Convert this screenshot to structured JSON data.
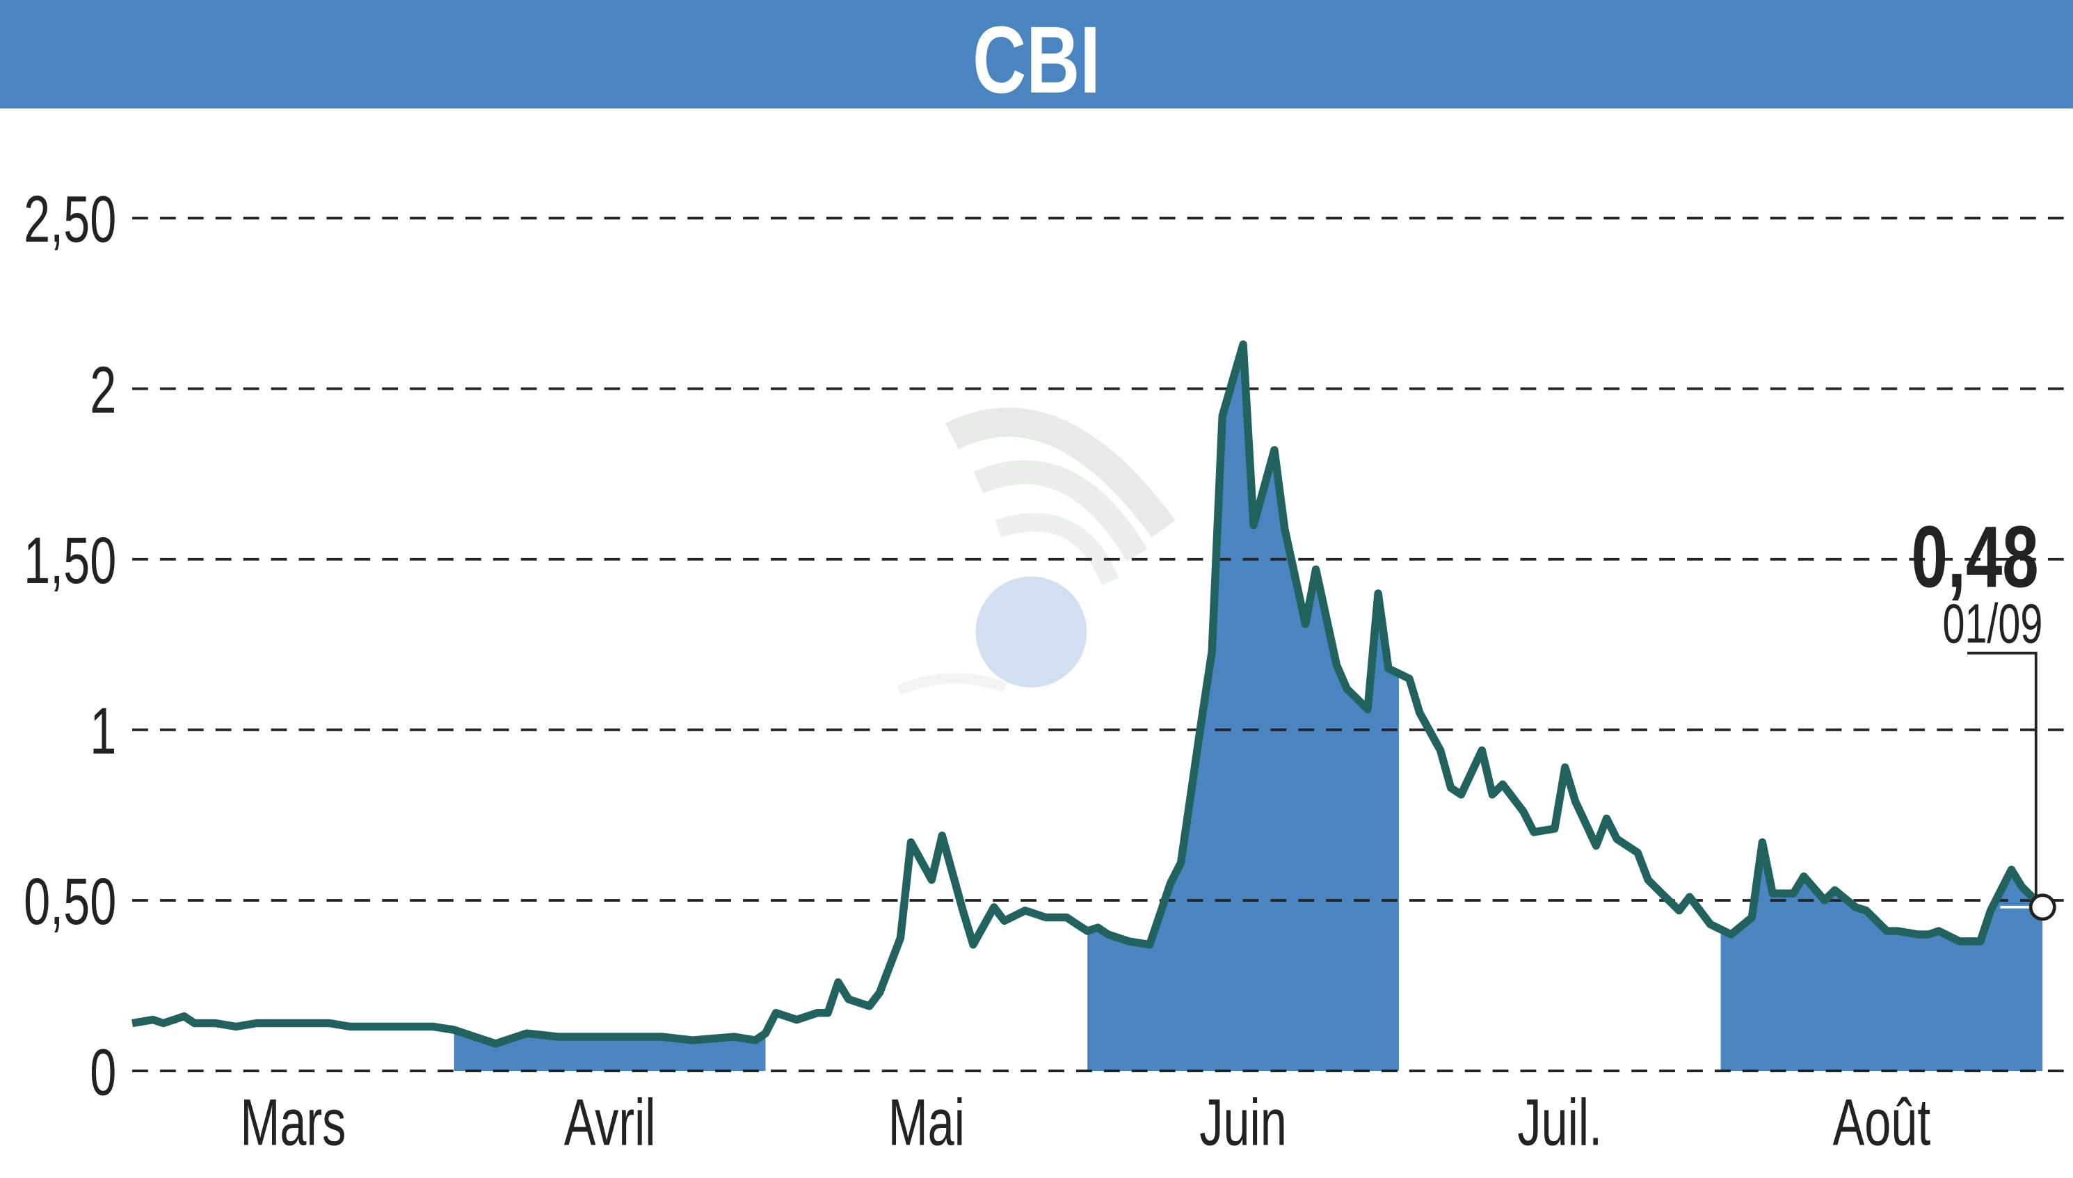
{
  "header": {
    "title": "CBI",
    "color": "#4a85c1"
  },
  "chart_data": {
    "type": "line",
    "title": "CBI",
    "xlabel": "",
    "ylabel": "",
    "ylim": [
      0,
      2.5
    ],
    "yticks": [
      0,
      0.5,
      1,
      1.5,
      2,
      2.5
    ],
    "ytick_labels": [
      "0",
      "0,50",
      "1",
      "1,50",
      "2",
      "2,50"
    ],
    "grid": true,
    "months": [
      {
        "label": "Mars",
        "start": "01/03",
        "shaded": false
      },
      {
        "label": "Avril",
        "start": "01/04",
        "shaded": true
      },
      {
        "label": "Mai",
        "start": "01/05",
        "shaded": false
      },
      {
        "label": "Juin",
        "start": "01/06",
        "shaded": true
      },
      {
        "label": "Juil.",
        "start": "01/07",
        "shaded": false
      },
      {
        "label": "Août",
        "start": "01/08",
        "shaded": true
      }
    ],
    "end_date": "01/09",
    "line_color": "#22625e",
    "fill_color": "#4a85c1",
    "last_value": {
      "label": "0,48",
      "date": "01/09",
      "value": 0.48
    },
    "series": [
      {
        "x": [
          "01/03",
          "03/03",
          "04/03",
          "06/03",
          "07/03",
          "09/03",
          "11/03",
          "13/03",
          "15/03",
          "18/03",
          "20/03",
          "22/03",
          "25/03",
          "28/03",
          "30/03",
          "01/04",
          "04/04",
          "05/04",
          "08/04",
          "11/04",
          "14/04",
          "17/04",
          "19/04",
          "21/04",
          "24/04",
          "28/04",
          "30/04",
          "01/05",
          "02/05",
          "04/05",
          "06/05",
          "07/05",
          "08/05",
          "09/05",
          "11/05",
          "12/05",
          "14/05",
          "15/05",
          "17/05",
          "18/05",
          "20/05",
          "21/05",
          "23/05",
          "24/05",
          "26/05",
          "28/05",
          "30/05",
          "31/05",
          "01/06",
          "02/06",
          "03/06",
          "05/06",
          "07/06",
          "09/06",
          "10/06",
          "12/06",
          "13/06",
          "14/06",
          "16/06",
          "17/06",
          "19/06",
          "20/06",
          "22/06",
          "23/06",
          "25/06",
          "26/06",
          "28/06",
          "29/06",
          "30/06",
          "02/07",
          "03/07",
          "05/07",
          "06/07",
          "07/07",
          "09/07",
          "10/07",
          "11/07",
          "13/07",
          "14/07",
          "16/07",
          "17/07",
          "18/07",
          "20/07",
          "21/07",
          "22/07",
          "24/07",
          "25/07",
          "26/07",
          "28/07",
          "29/07",
          "30/07",
          "31/07",
          "02/08",
          "04/08",
          "05/08",
          "06/08",
          "08/08",
          "09/08",
          "11/08",
          "12/08",
          "14/08",
          "15/08",
          "17/08",
          "18/08",
          "20/08",
          "21/08",
          "22/08",
          "24/08",
          "26/08",
          "27/08",
          "29/08",
          "30/08",
          "01/09"
        ],
        "values": [
          0.14,
          0.15,
          0.14,
          0.16,
          0.14,
          0.14,
          0.13,
          0.14,
          0.14,
          0.14,
          0.14,
          0.13,
          0.13,
          0.13,
          0.13,
          0.12,
          0.09,
          0.08,
          0.11,
          0.1,
          0.1,
          0.1,
          0.1,
          0.1,
          0.09,
          0.1,
          0.09,
          0.11,
          0.17,
          0.15,
          0.17,
          0.17,
          0.26,
          0.21,
          0.19,
          0.23,
          0.39,
          0.67,
          0.56,
          0.69,
          0.47,
          0.37,
          0.48,
          0.44,
          0.47,
          0.45,
          0.45,
          0.43,
          0.41,
          0.42,
          0.4,
          0.38,
          0.37,
          0.55,
          0.61,
          1.03,
          1.23,
          1.92,
          2.13,
          1.6,
          1.82,
          1.59,
          1.31,
          1.47,
          1.19,
          1.12,
          1.06,
          1.4,
          1.18,
          1.15,
          1.05,
          0.94,
          0.83,
          0.81,
          0.94,
          0.81,
          0.84,
          0.76,
          0.7,
          0.71,
          0.89,
          0.79,
          0.66,
          0.74,
          0.68,
          0.64,
          0.56,
          0.53,
          0.47,
          0.51,
          0.47,
          0.43,
          0.4,
          0.45,
          0.67,
          0.52,
          0.52,
          0.57,
          0.5,
          0.53,
          0.48,
          0.47,
          0.41,
          0.41,
          0.4,
          0.4,
          0.41,
          0.38,
          0.38,
          0.47,
          0.59,
          0.54,
          0.48
        ]
      }
    ]
  }
}
